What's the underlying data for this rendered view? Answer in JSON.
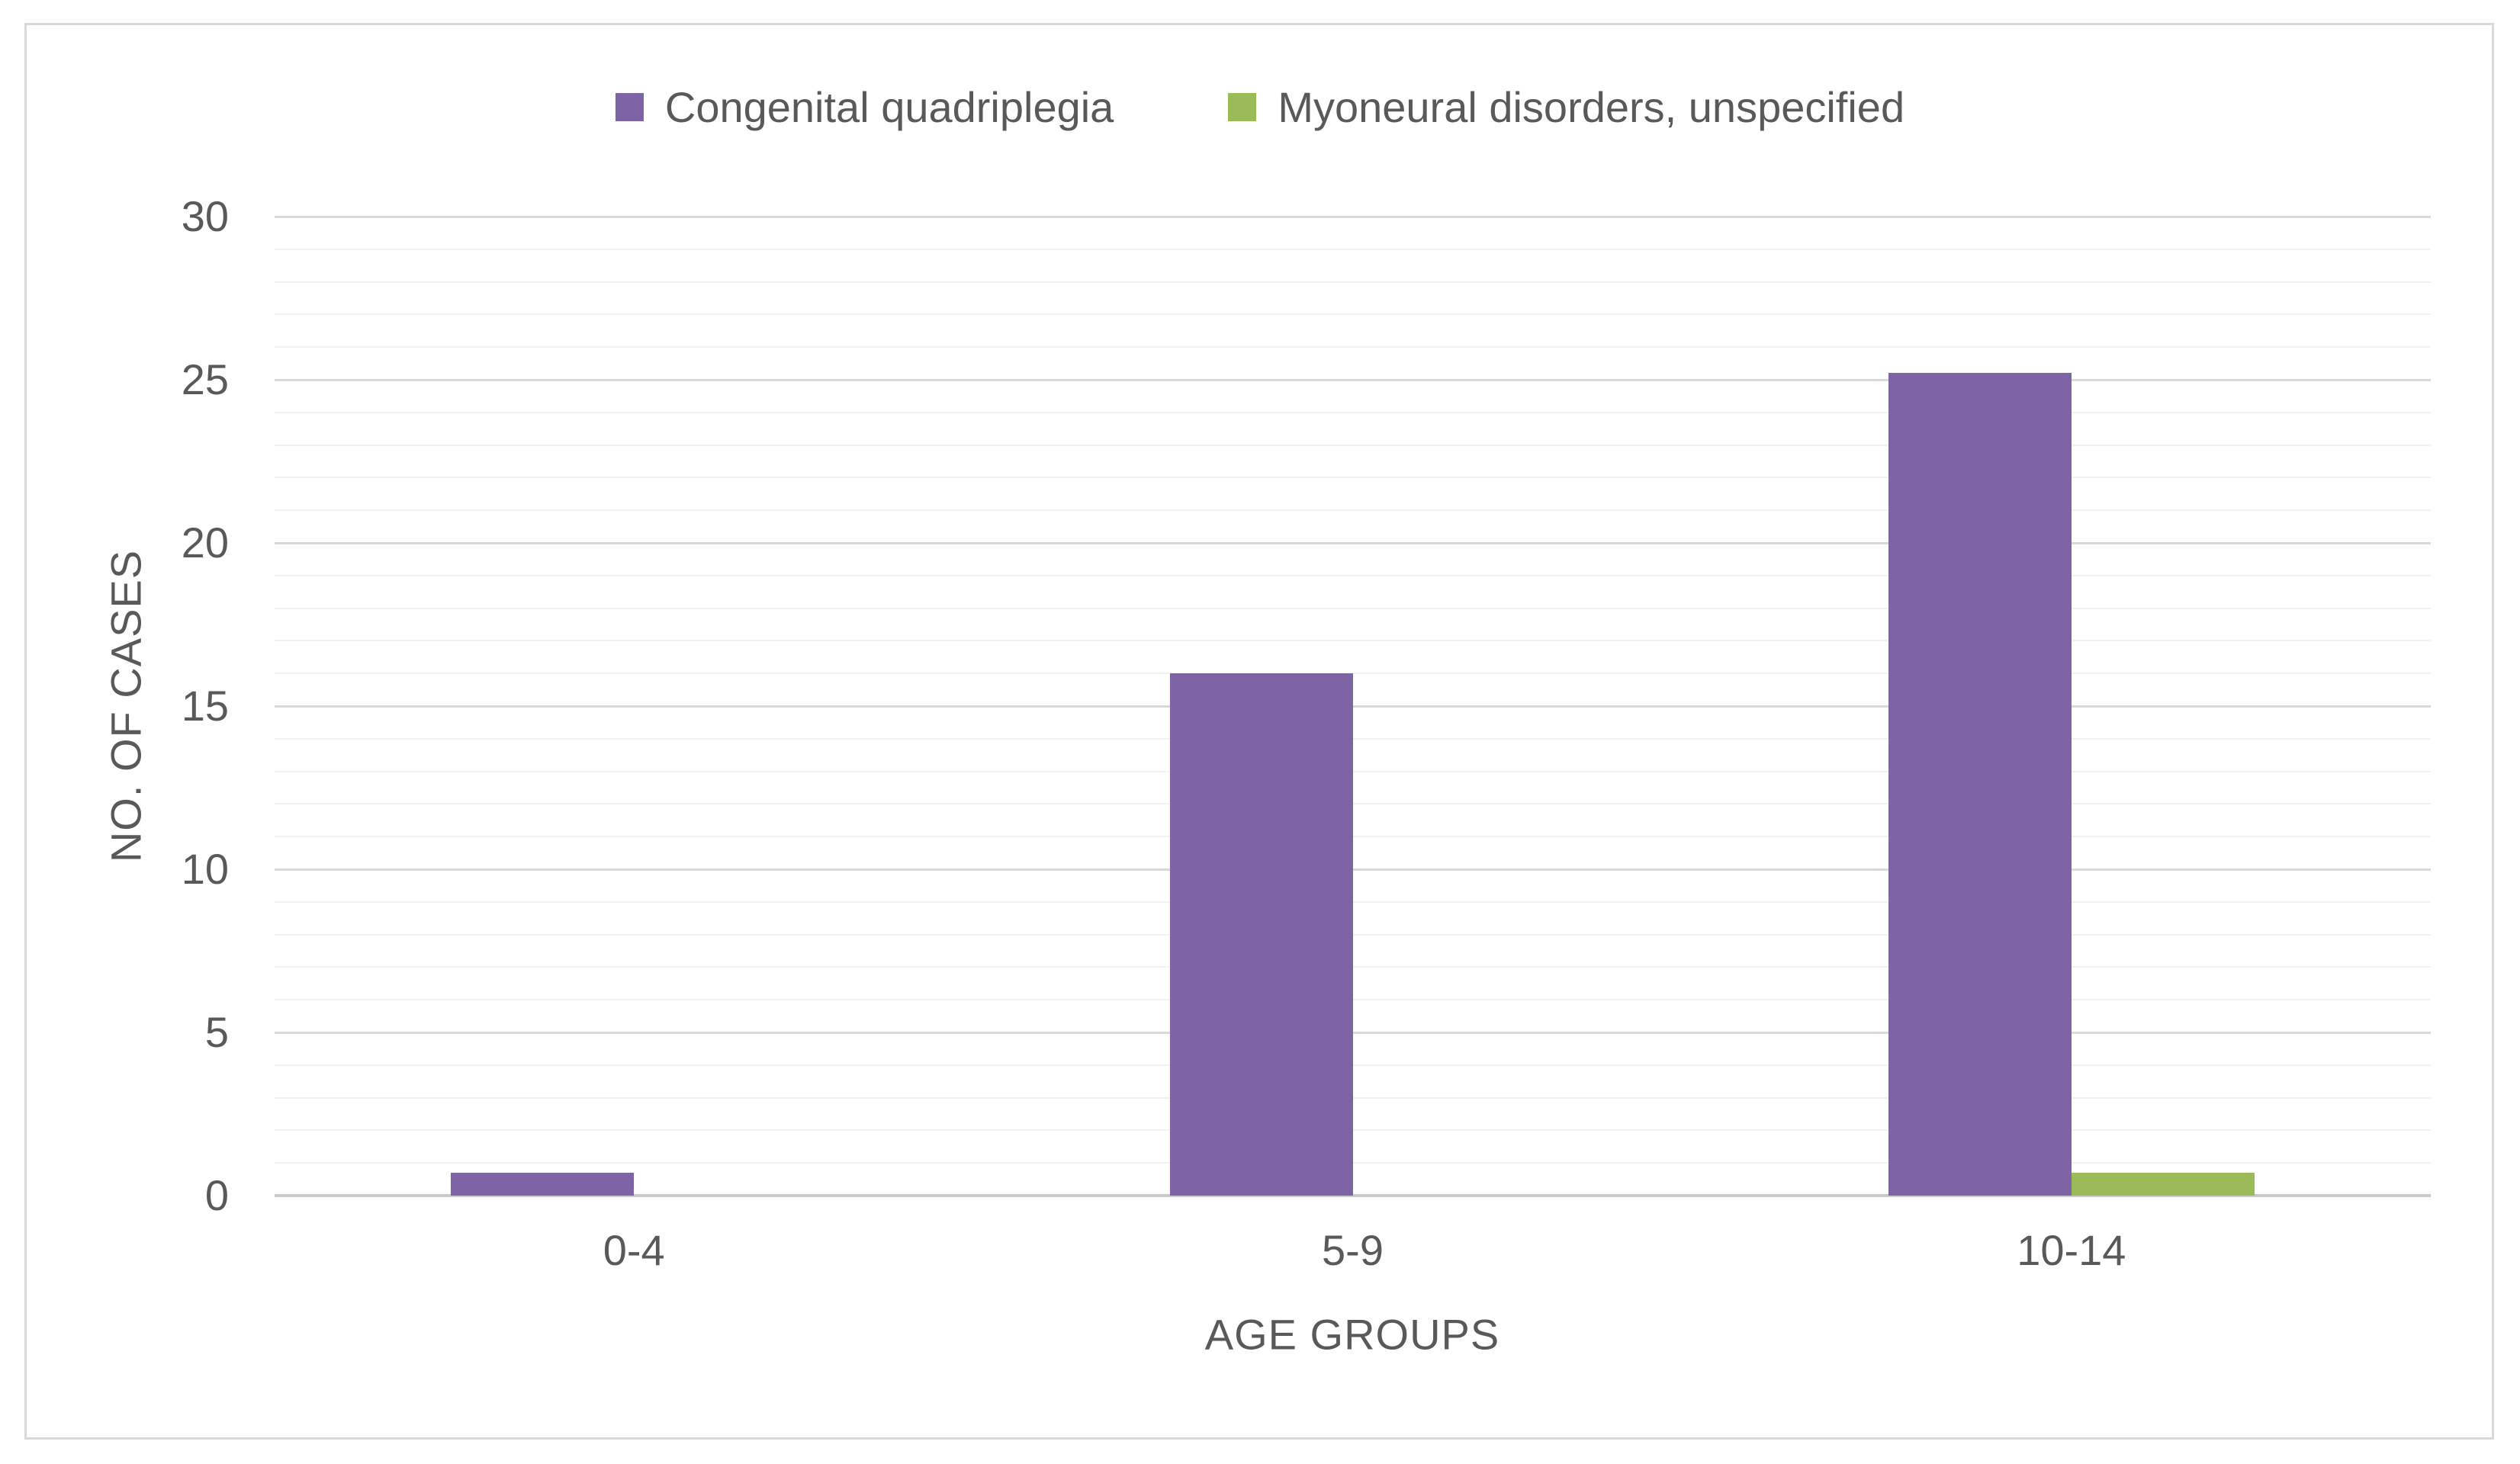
{
  "chart_data": {
    "type": "bar",
    "title": "",
    "categories": [
      "0-4",
      "5-9",
      "10-14"
    ],
    "series": [
      {
        "name": "Congenital quadriplegia",
        "color": "#7e64a5",
        "values": [
          0.7,
          16,
          25.2
        ]
      },
      {
        "name": "Myoneural disorders, unspecified",
        "color": "#9bbb59",
        "values": [
          0,
          0,
          0.7
        ]
      }
    ],
    "xlabel": "AGE GROUPS",
    "ylabel": "NO. OF CASES",
    "ylim": [
      0,
      30
    ],
    "y_ticks": [
      0,
      5,
      10,
      15,
      20,
      25,
      30
    ],
    "y_major_step": 5,
    "y_minor_step": 1,
    "grid": "on",
    "legend_position": "top"
  },
  "colors": {
    "text": "#595959",
    "gridline_major": "#d9d9d9",
    "gridline_minor": "#f2f2f2",
    "axis_line": "#c9c9c9",
    "frame_border": "#d9d9d9",
    "background": "#ffffff"
  }
}
